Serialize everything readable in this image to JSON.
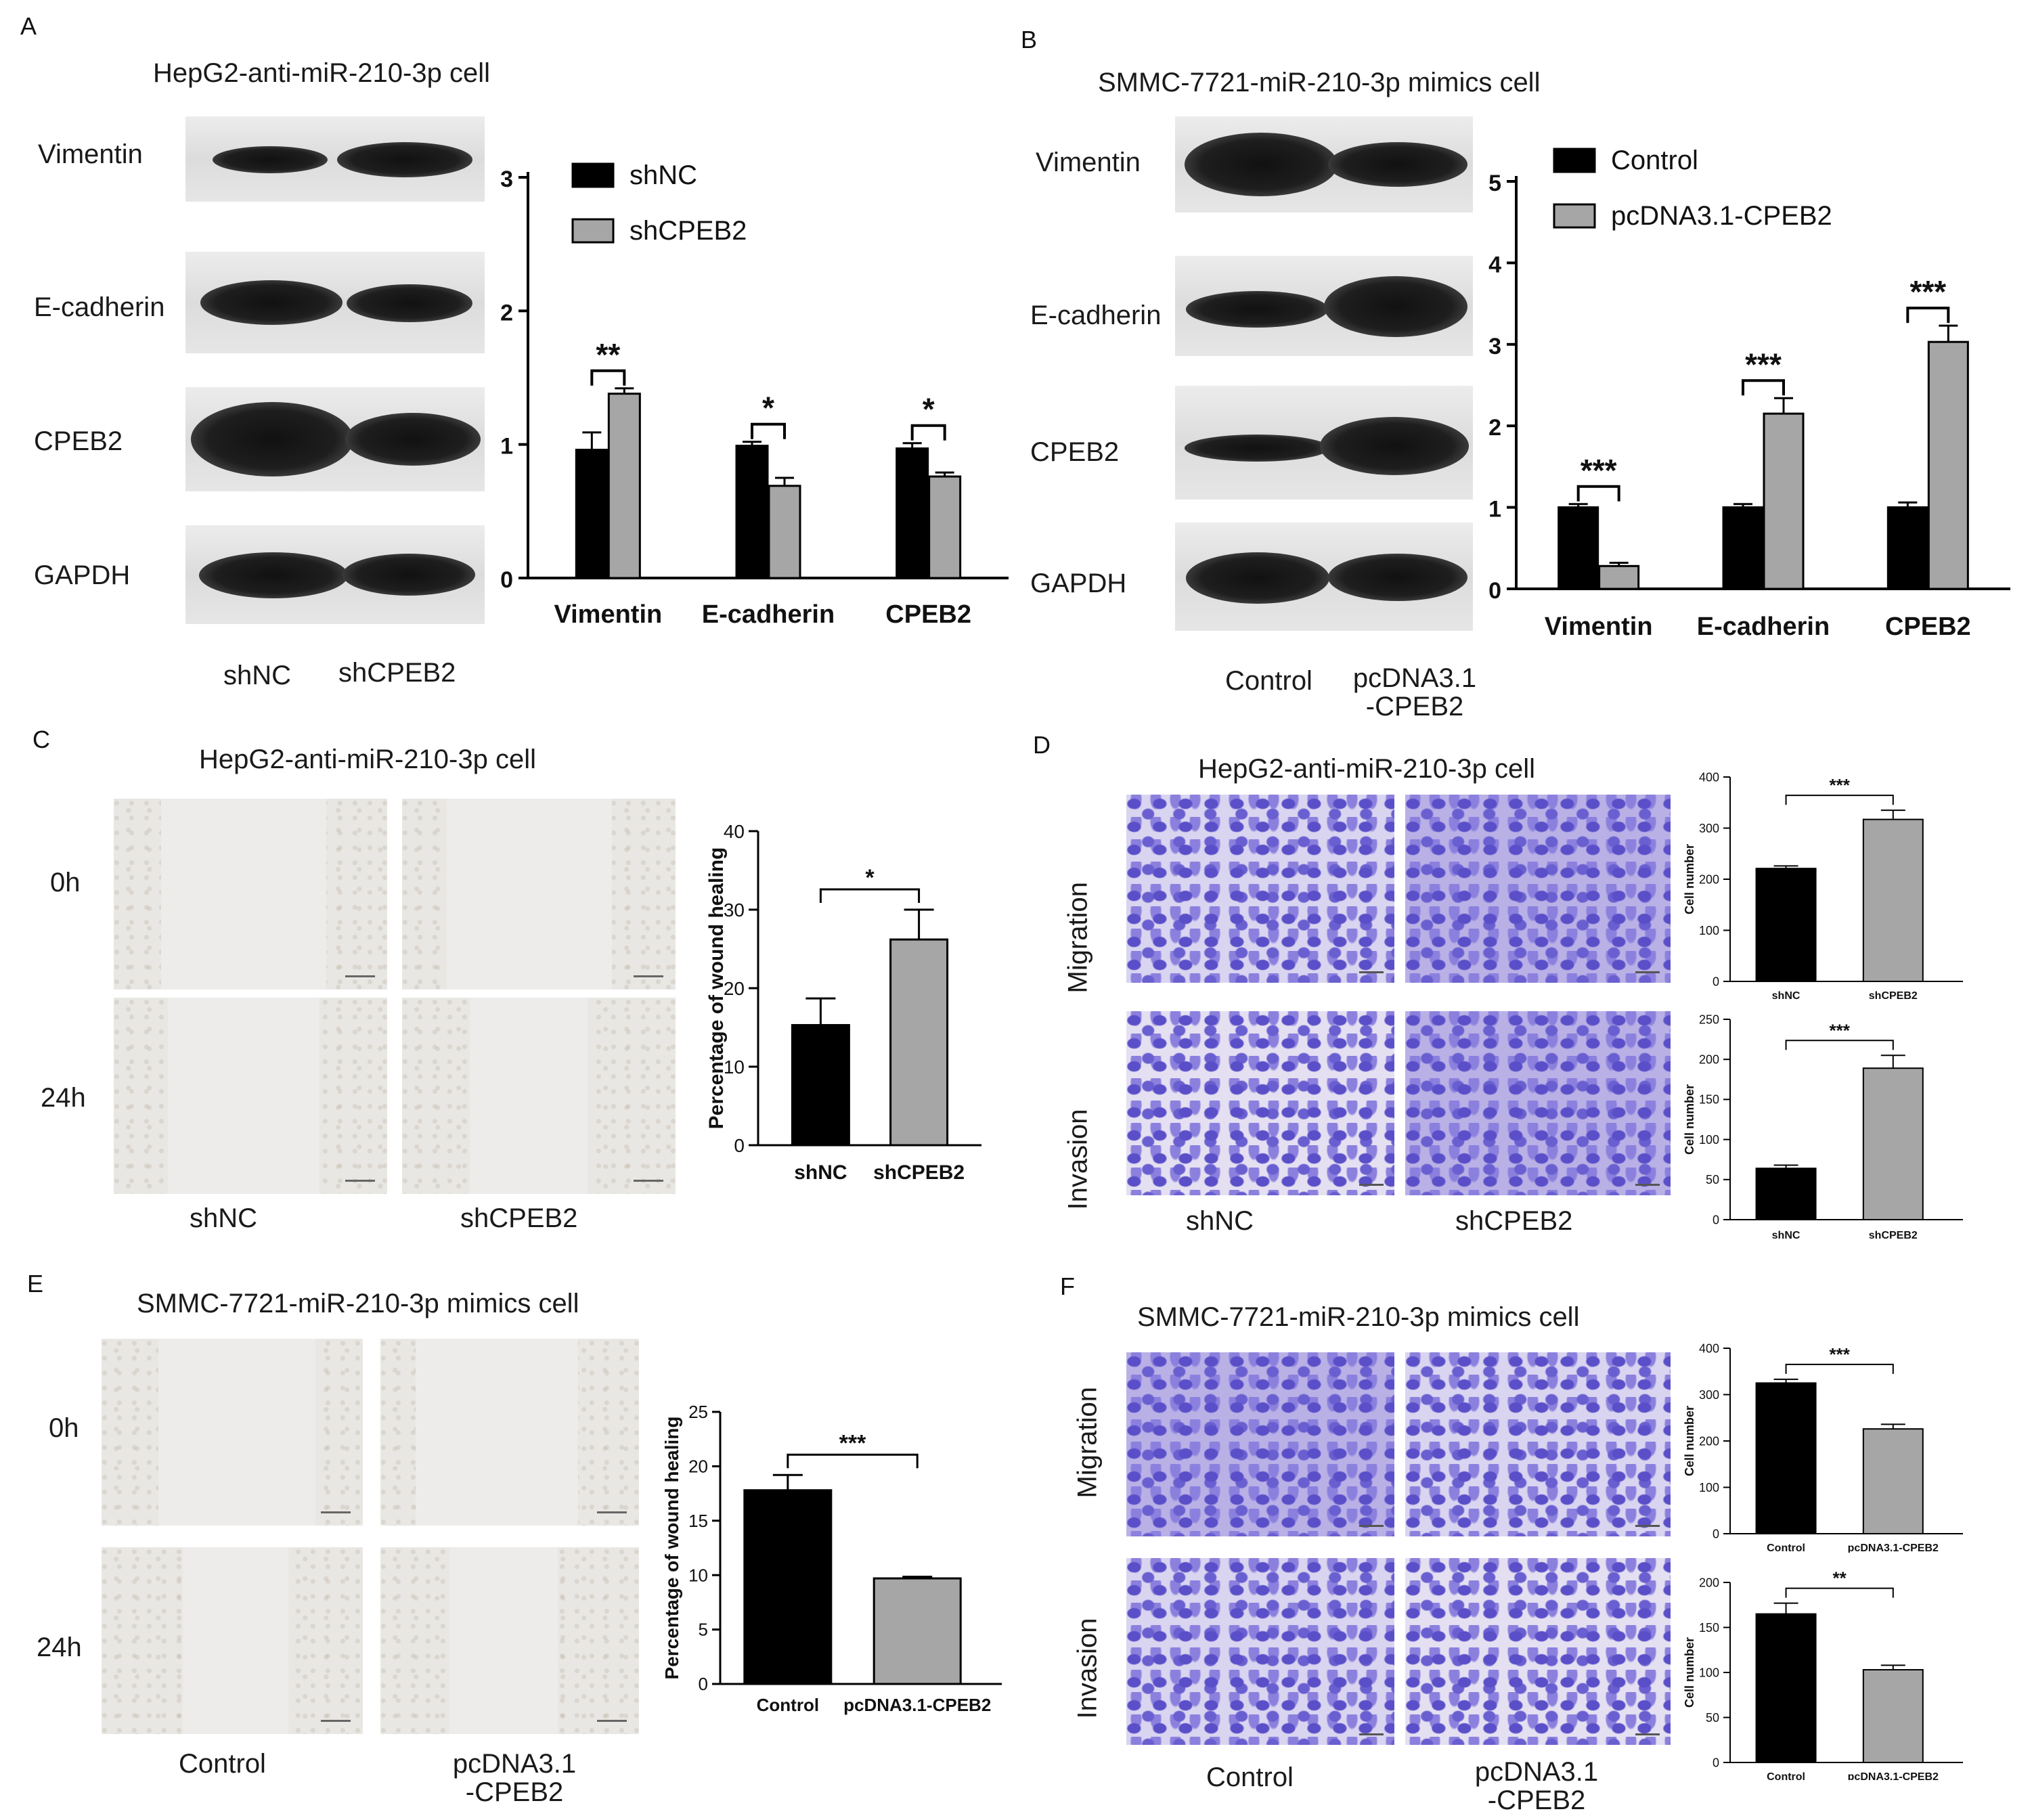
{
  "panels": {
    "A": {
      "letter": "A",
      "title": "HepG2-anti-miR-210-3p cell",
      "blot_rows": [
        "Vimentin",
        "E-cadherin",
        "CPEB2",
        "GAPDH"
      ],
      "lanes": [
        "shNC",
        "shCPEB2"
      ]
    },
    "B": {
      "letter": "B",
      "title": "SMMC-7721-miR-210-3p mimics cell",
      "blot_rows": [
        "Vimentin",
        "E-cadherin",
        "CPEB2",
        "GAPDH"
      ],
      "lanes": [
        "Control",
        "pcDNA3.1",
        "-CPEB2"
      ]
    },
    "C": {
      "letter": "C",
      "title": "HepG2-anti-miR-210-3p cell",
      "rows": [
        "0h",
        "24h"
      ],
      "cols": [
        "shNC",
        "shCPEB2"
      ]
    },
    "D": {
      "letter": "D",
      "title": "HepG2-anti-miR-210-3p cell",
      "rows": [
        "Migration",
        "Invasion"
      ],
      "cols": [
        "shNC",
        "shCPEB2"
      ]
    },
    "E": {
      "letter": "E",
      "title": "SMMC-7721-miR-210-3p mimics cell",
      "rows": [
        "0h",
        "24h"
      ],
      "cols": [
        "Control",
        "pcDNA3.1",
        "-CPEB2"
      ]
    },
    "F": {
      "letter": "F",
      "title": "SMMC-7721-miR-210-3p mimics cell",
      "rows": [
        "Migration",
        "Invasion"
      ],
      "cols": [
        "Control",
        "pcDNA3.1",
        "-CPEB2"
      ]
    }
  },
  "colors": {
    "group1": "#000000",
    "group2": "#a6a6a6",
    "axis": "#000000"
  },
  "chart_data": [
    {
      "id": "A",
      "type": "bar",
      "categories": [
        "Vimentin",
        "E-cadherin",
        "CPEB2"
      ],
      "series": [
        {
          "name": "shNC",
          "values": [
            0.96,
            0.99,
            0.97
          ],
          "err": [
            0.13,
            0.03,
            0.04
          ]
        },
        {
          "name": "shCPEB2",
          "values": [
            1.38,
            0.69,
            0.76
          ],
          "err": [
            0.04,
            0.06,
            0.03
          ]
        }
      ],
      "significance": [
        "**",
        "*",
        "*"
      ],
      "ylim": [
        0,
        3
      ],
      "yticks": [
        0,
        1,
        2,
        3
      ],
      "xlabel": "",
      "ylabel": "",
      "legend": "top-right"
    },
    {
      "id": "B",
      "type": "bar",
      "categories": [
        "Vimentin",
        "E-cadherin",
        "CPEB2"
      ],
      "series": [
        {
          "name": "Control",
          "values": [
            1.0,
            1.0,
            1.0
          ],
          "err": [
            0.04,
            0.04,
            0.06
          ]
        },
        {
          "name": "pcDNA3.1-CPEB2",
          "values": [
            0.28,
            2.15,
            3.03
          ],
          "err": [
            0.04,
            0.19,
            0.2
          ]
        }
      ],
      "significance": [
        "***",
        "***",
        "***"
      ],
      "ylim": [
        0,
        5
      ],
      "yticks": [
        0,
        1,
        2,
        3,
        4,
        5
      ],
      "xlabel": "",
      "ylabel": "",
      "legend": "top-right"
    },
    {
      "id": "C",
      "type": "bar",
      "categories": [
        "shNC",
        "shCPEB2"
      ],
      "values": [
        15.3,
        26.2
      ],
      "err": [
        3.4,
        3.8
      ],
      "significance": "*",
      "ylim": [
        0,
        40
      ],
      "yticks": [
        0,
        10,
        20,
        30,
        40
      ],
      "xlabel": "",
      "ylabel": "Percentage of wound healing"
    },
    {
      "id": "D-migration",
      "type": "bar",
      "categories": [
        "shNC",
        "shCPEB2"
      ],
      "values": [
        221,
        317
      ],
      "err": [
        5,
        18
      ],
      "significance": "***",
      "ylim": [
        0,
        400
      ],
      "yticks": [
        0,
        100,
        200,
        300,
        400
      ],
      "xlabel": "",
      "ylabel": "Cell number"
    },
    {
      "id": "D-invasion",
      "type": "bar",
      "categories": [
        "shNC",
        "shCPEB2"
      ],
      "values": [
        64,
        189
      ],
      "err": [
        4,
        16
      ],
      "significance": "***",
      "ylim": [
        0,
        250
      ],
      "yticks": [
        0,
        50,
        100,
        150,
        200,
        250
      ],
      "xlabel": "",
      "ylabel": "Cell number"
    },
    {
      "id": "E",
      "type": "bar",
      "categories": [
        "Control",
        "pcDNA3.1-CPEB2"
      ],
      "values": [
        17.8,
        9.7
      ],
      "err": [
        1.4,
        0.15
      ],
      "significance": "***",
      "ylim": [
        0,
        25
      ],
      "yticks": [
        0,
        5,
        10,
        15,
        20,
        25
      ],
      "xlabel": "",
      "ylabel": "Percentage of wound healing"
    },
    {
      "id": "F-migration",
      "type": "bar",
      "categories": [
        "Control",
        "pcDNA3.1-CPEB2"
      ],
      "values": [
        325,
        226
      ],
      "err": [
        8,
        10
      ],
      "significance": "***",
      "ylim": [
        0,
        400
      ],
      "yticks": [
        0,
        100,
        200,
        300,
        400
      ],
      "xlabel": "",
      "ylabel": "Cell number"
    },
    {
      "id": "F-invasion",
      "type": "bar",
      "categories": [
        "Control",
        "pcDNA3.1-CPEB2"
      ],
      "values": [
        165,
        103
      ],
      "err": [
        12,
        5
      ],
      "significance": "**",
      "ylim": [
        0,
        200
      ],
      "yticks": [
        0,
        50,
        100,
        150,
        200
      ],
      "xlabel": "",
      "ylabel": "Cell number"
    }
  ]
}
